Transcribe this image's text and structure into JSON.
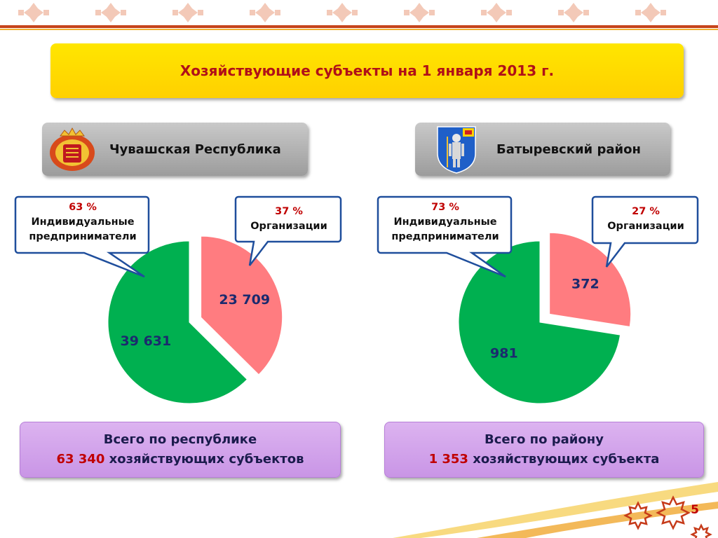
{
  "title": "Хозяйствующие субъекты на 1 января 2013 г.",
  "colors": {
    "green": "#00b050",
    "red": "#ff7c80",
    "title_bg": "#ffd700",
    "accent": "#c00000"
  },
  "left": {
    "region": "Чувашская Республика",
    "emblem": "chuvash-coat-of-arms-icon",
    "callout_ip": {
      "pct": "63 %",
      "line1": "Индивидуальные",
      "line2": "предприниматели"
    },
    "callout_org": {
      "pct": "37 %",
      "line1": "Организации"
    },
    "total_line1": "Всего по республике",
    "total_number": "63 340",
    "total_suffix": " хозяйствующих субъектов"
  },
  "right": {
    "region": "Батыревский район",
    "emblem": "batyrevo-coat-of-arms-icon",
    "callout_ip": {
      "pct": "73 %",
      "line1": "Индивидуальные",
      "line2": "предприниматели"
    },
    "callout_org": {
      "pct": "27 %",
      "line1": "Организации"
    },
    "total_line1": "Всего по району",
    "total_number": "1 353",
    "total_suffix": " хозяйствующих субъекта"
  },
  "chart_data": [
    {
      "type": "pie",
      "title": "Чувашская Республика",
      "categories": [
        "Организации",
        "Индивидуальные предприниматели"
      ],
      "values": [
        23709,
        39631
      ],
      "value_labels": [
        "23 709",
        "39 631"
      ],
      "percent_labels": [
        "37 %",
        "63 %"
      ],
      "colors": [
        "#ff7c80",
        "#00b050"
      ],
      "exploded": [
        true,
        false
      ]
    },
    {
      "type": "pie",
      "title": "Батыревский район",
      "categories": [
        "Организации",
        "Индивидуальные предприниматели"
      ],
      "values": [
        372,
        981
      ],
      "value_labels": [
        "372",
        "981"
      ],
      "percent_labels": [
        "27 %",
        "73 %"
      ],
      "colors": [
        "#ff7c80",
        "#00b050"
      ],
      "exploded": [
        true,
        false
      ]
    }
  ],
  "page_number": "5"
}
